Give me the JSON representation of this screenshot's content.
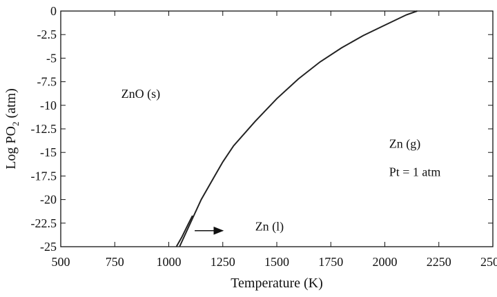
{
  "chart_data": {
    "type": "line",
    "title": "",
    "xlabel": "Temperature (K)",
    "ylabel_parts": {
      "pre": "Log PO",
      "sub": "2",
      "post": " (atm)"
    },
    "xlim": [
      500,
      2500
    ],
    "ylim": [
      -25,
      0
    ],
    "grid": false,
    "legend": "none",
    "x_ticks": [
      500,
      750,
      1000,
      1250,
      1500,
      1750,
      2000,
      2250,
      2500
    ],
    "y_ticks": [
      0,
      -2.5,
      -5,
      -7.5,
      -10,
      -12.5,
      -15,
      -17.5,
      -20,
      -22.5,
      -25
    ],
    "series": [
      {
        "x": [
          1050,
          1080,
          1110,
          1150,
          1200,
          1250,
          1300,
          1400,
          1500,
          1600,
          1700,
          1800,
          1900,
          2000,
          2100,
          2150
        ],
        "y": [
          -25,
          -23.5,
          -22,
          -20,
          -18,
          -16,
          -14.3,
          -11.7,
          -9.3,
          -7.2,
          -5.4,
          -3.9,
          -2.6,
          -1.5,
          -0.4,
          0
        ]
      },
      {
        "x": [
          1035,
          1060,
          1090,
          1110
        ],
        "y": [
          -25,
          -24,
          -22.6,
          -21.7
        ]
      }
    ],
    "annotations": [
      {
        "text": "ZnO (s)",
        "x": 780,
        "y": -9.2
      },
      {
        "text": "Zn (g)",
        "x": 2020,
        "y": -14.5
      },
      {
        "text": "Pt = 1 atm",
        "x": 2020,
        "y": -17.5
      },
      {
        "text": "Zn (l)",
        "x": 1400,
        "y": -23.3
      }
    ],
    "arrow": {
      "from": [
        1120,
        -23.3
      ],
      "to": [
        1250,
        -23.3
      ]
    }
  }
}
